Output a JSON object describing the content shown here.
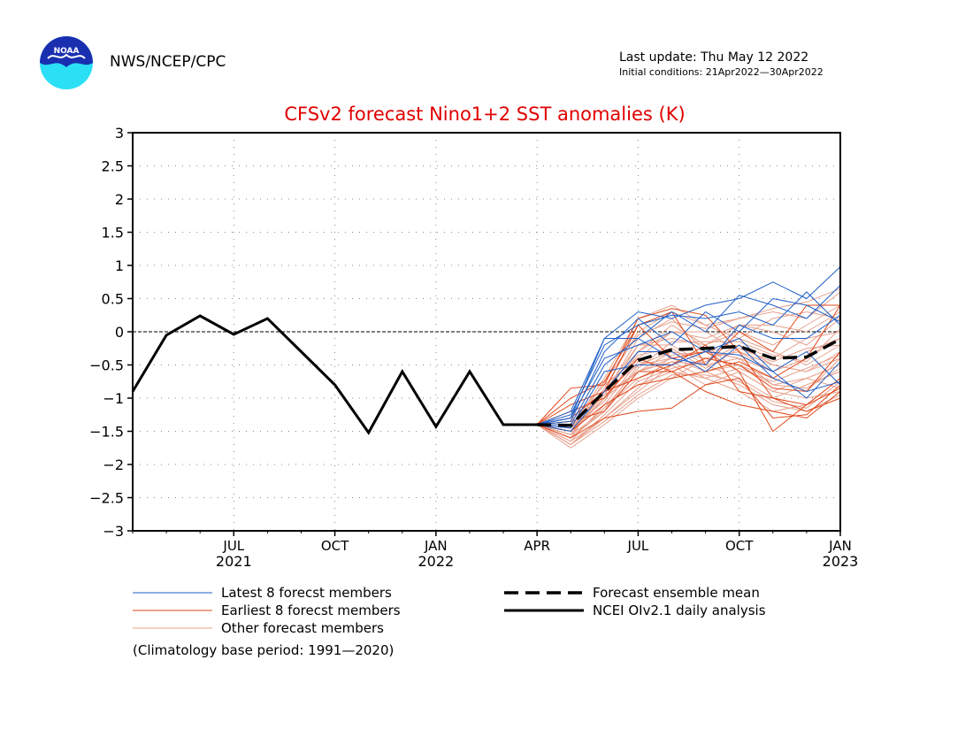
{
  "header": {
    "org": "NWS/NCEP/CPC",
    "last_update": "Last update: Thu May 12 2022",
    "initial_conditions": "Initial conditions: 21Apr2022—30Apr2022",
    "logo_text": "NOAA"
  },
  "colors": {
    "title": "#e00000",
    "latest": "#1f5fc8",
    "earliest": "#e0481a",
    "other": "#e7a08c",
    "obs": "#000000"
  },
  "chart_data": {
    "type": "line",
    "title": "CFSv2 forecast Nino1+2 SST anomalies (K)",
    "xlabel": "",
    "ylabel": "",
    "ylim": [
      -3,
      3
    ],
    "xlim": [
      "2021-04",
      "2023-01"
    ],
    "yticks": [
      "3",
      "2.5",
      "2",
      "1.5",
      "1",
      "0.5",
      "0",
      "−0.5",
      "−1",
      "−1.5",
      "−2",
      "−2.5",
      "−3"
    ],
    "xticks": [
      {
        "month": "2021-07",
        "label": "JUL",
        "year": "2021"
      },
      {
        "month": "2021-10",
        "label": "OCT",
        "year": ""
      },
      {
        "month": "2022-01",
        "label": "JAN",
        "year": "2022"
      },
      {
        "month": "2022-04",
        "label": "APR",
        "year": ""
      },
      {
        "month": "2022-07",
        "label": "JUL",
        "year": ""
      },
      {
        "month": "2022-10",
        "label": "OCT",
        "year": ""
      },
      {
        "month": "2023-01",
        "label": "JAN",
        "year": "2023"
      }
    ],
    "grid": true,
    "zero_line": true,
    "forecast_months": [
      "2022-04",
      "2022-05",
      "2022-06",
      "2022-07",
      "2022-08",
      "2022-09",
      "2022-10",
      "2022-11",
      "2022-12",
      "2023-01"
    ],
    "observed": {
      "name": "NCEI OIv2.1 daily analysis",
      "x": [
        "2021-04",
        "2021-05",
        "2021-06",
        "2021-07",
        "2021-08",
        "2021-09",
        "2021-10",
        "2021-11",
        "2021-12",
        "2022-01",
        "2022-02",
        "2022-03",
        "2022-04"
      ],
      "values": [
        -0.9,
        -0.05,
        0.24,
        -0.04,
        0.2,
        -0.3,
        -0.8,
        -1.52,
        -0.6,
        -1.43,
        -0.6,
        -1.4,
        -1.4
      ]
    },
    "ensemble_mean": {
      "name": "Forecast ensemble mean",
      "values": [
        -1.4,
        -1.41,
        -0.9,
        -0.43,
        -0.27,
        -0.25,
        -0.22,
        -0.4,
        -0.38,
        -0.11
      ]
    },
    "latest_members": {
      "name": "Latest 8 forecst members",
      "members": [
        [
          -1.4,
          -1.3,
          -0.1,
          0.3,
          0.2,
          0.4,
          0.5,
          0.75,
          0.5,
          0.98
        ],
        [
          -1.4,
          -1.2,
          -0.1,
          -0.1,
          0.3,
          0.0,
          0.55,
          0.4,
          0.2,
          0.7
        ],
        [
          -1.4,
          -1.45,
          -0.6,
          -0.5,
          -0.5,
          -0.3,
          -0.1,
          -0.6,
          -0.3,
          -0.8
        ],
        [
          -1.4,
          -1.35,
          -0.3,
          0.2,
          -0.2,
          0.3,
          0.0,
          0.5,
          0.4,
          0.15
        ],
        [
          -1.4,
          -1.5,
          -0.9,
          -0.3,
          -0.3,
          -0.6,
          -0.2,
          -0.7,
          -0.9,
          -0.75
        ],
        [
          -1.4,
          -1.25,
          -0.2,
          0.1,
          0.25,
          0.2,
          0.3,
          0.1,
          0.6,
          0.1
        ],
        [
          -1.4,
          -1.4,
          -0.5,
          -0.1,
          -0.4,
          -0.5,
          0.1,
          -0.1,
          -0.1,
          0.25
        ],
        [
          -1.4,
          -1.3,
          -0.4,
          -0.2,
          0.0,
          -0.3,
          -0.35,
          -0.6,
          -1.0,
          -0.45
        ]
      ]
    },
    "earliest_members": {
      "name": "Earliest 8 forecst members",
      "members": [
        [
          -1.4,
          -1.0,
          -0.75,
          0.1,
          -0.4,
          -0.3,
          -0.6,
          -1.5,
          -1.1,
          -0.85
        ],
        [
          -1.4,
          -0.85,
          -0.8,
          0.2,
          0.35,
          0.25,
          -0.3,
          -1.0,
          -1.2,
          -1.0
        ],
        [
          -1.4,
          -1.6,
          -1.3,
          -1.2,
          -1.15,
          -0.8,
          -0.7,
          -1.3,
          -1.25,
          -0.8
        ],
        [
          -1.4,
          -1.3,
          -0.9,
          -0.7,
          -0.5,
          -0.2,
          -0.9,
          -1.0,
          -1.1,
          -0.7
        ],
        [
          -1.4,
          -1.2,
          -1.0,
          -0.4,
          -0.6,
          -0.4,
          -0.5,
          -0.85,
          -0.9,
          -0.3
        ],
        [
          -1.4,
          -1.5,
          -1.1,
          -0.8,
          -0.7,
          -0.6,
          -0.45,
          -0.7,
          -0.4,
          0.4
        ],
        [
          -1.4,
          -1.1,
          -0.9,
          0.1,
          0.3,
          -0.5,
          0.0,
          -0.3,
          0.4,
          0.4
        ],
        [
          -1.4,
          -1.35,
          -1.2,
          -0.6,
          -0.6,
          -0.9,
          -1.1,
          -1.2,
          -1.3,
          -0.9
        ]
      ]
    },
    "other_members": {
      "name": "Other forecast members",
      "members": [
        [
          -1.4,
          -1.5,
          -1.0,
          -0.6,
          -0.4,
          -0.6,
          -0.5,
          -0.8,
          -0.7,
          -0.5
        ],
        [
          -1.4,
          -1.6,
          -1.2,
          -0.5,
          -0.3,
          -0.4,
          -0.3,
          -0.5,
          -0.6,
          -0.3
        ],
        [
          -1.4,
          -1.7,
          -1.3,
          -0.9,
          -0.5,
          -0.2,
          -0.6,
          -0.9,
          -1.0,
          -0.9
        ],
        [
          -1.4,
          -1.55,
          -0.9,
          -0.3,
          0.1,
          -0.2,
          0.0,
          -0.2,
          0.1,
          0.4
        ],
        [
          -1.4,
          -1.45,
          -0.7,
          0.2,
          0.4,
          0.1,
          0.2,
          0.3,
          0.2,
          0.6
        ],
        [
          -1.4,
          -1.65,
          -1.1,
          -0.8,
          -0.6,
          -0.7,
          -0.9,
          -1.2,
          -1.1,
          -0.7
        ],
        [
          -1.4,
          -1.5,
          -1.0,
          -0.2,
          -0.2,
          -0.5,
          -0.4,
          -0.6,
          -0.4,
          -0.1
        ],
        [
          -1.4,
          -1.35,
          -0.8,
          -0.4,
          0.0,
          -0.1,
          0.1,
          0.0,
          -0.2,
          0.2
        ],
        [
          -1.4,
          -1.6,
          -1.15,
          -0.7,
          -0.45,
          -0.5,
          -0.7,
          -1.0,
          -0.8,
          -0.6
        ],
        [
          -1.4,
          -1.75,
          -1.4,
          -1.0,
          -0.7,
          -0.4,
          -0.5,
          -0.7,
          -0.9,
          -0.4
        ],
        [
          -1.4,
          -1.5,
          -0.95,
          -0.1,
          0.2,
          -0.3,
          -0.2,
          -0.4,
          -0.1,
          0.0
        ],
        [
          -1.4,
          -1.4,
          -0.9,
          -0.5,
          -0.4,
          -0.3,
          -0.1,
          -0.3,
          -0.5,
          -0.2
        ],
        [
          -1.4,
          -1.55,
          -1.2,
          -0.6,
          -0.3,
          -0.6,
          -0.8,
          -1.1,
          -1.2,
          -0.95
        ],
        [
          -1.4,
          -1.45,
          -1.05,
          -0.3,
          0.0,
          0.0,
          -0.3,
          -0.6,
          -0.3,
          -0.1
        ],
        [
          -1.4,
          -1.7,
          -1.25,
          -0.75,
          -0.55,
          -0.45,
          -0.2,
          -0.5,
          -0.6,
          -0.4
        ],
        [
          -1.4,
          -1.6,
          -0.85,
          0.0,
          0.3,
          0.1,
          -0.1,
          0.2,
          0.3,
          0.2
        ],
        [
          -1.4,
          -1.5,
          -1.1,
          -0.45,
          -0.5,
          -0.8,
          -0.6,
          -0.9,
          -0.7,
          -0.85
        ],
        [
          -1.4,
          -1.45,
          -0.9,
          -0.2,
          -0.1,
          -0.2,
          0.1,
          0.1,
          0.0,
          0.3
        ],
        [
          -1.4,
          -1.65,
          -1.3,
          -0.85,
          -0.35,
          -0.3,
          -0.4,
          -0.8,
          -0.85,
          -0.55
        ],
        [
          -1.4,
          -1.55,
          -1.0,
          -0.35,
          -0.25,
          -0.55,
          -0.25,
          -0.45,
          -0.25,
          -0.2
        ],
        [
          -1.4,
          -1.6,
          -1.15,
          -0.55,
          -0.15,
          -0.15,
          -0.15,
          -0.35,
          -0.45,
          0.05
        ],
        [
          -1.4,
          -1.7,
          -1.35,
          -0.95,
          -0.65,
          -0.65,
          -0.75,
          -1.05,
          -1.15,
          -0.75
        ],
        [
          -1.4,
          -1.5,
          -0.75,
          -0.05,
          0.15,
          0.05,
          0.2,
          0.35,
          0.45,
          0.65
        ],
        [
          -1.4,
          -1.4,
          -0.95,
          -0.6,
          -0.45,
          -0.7,
          -0.55,
          -0.75,
          -0.55,
          -0.35
        ]
      ]
    },
    "legend_placement": "bottom",
    "legend": [
      {
        "key": "latest",
        "label": "Latest 8 forecst members"
      },
      {
        "key": "earliest",
        "label": "Earliest 8 forecst members"
      },
      {
        "key": "other",
        "label": "Other forecast members"
      },
      {
        "key": "mean",
        "label": "Forecast ensemble mean"
      },
      {
        "key": "obs",
        "label": "NCEI OIv2.1 daily analysis"
      }
    ],
    "note": "(Climatology base period: 1991—2020)"
  }
}
